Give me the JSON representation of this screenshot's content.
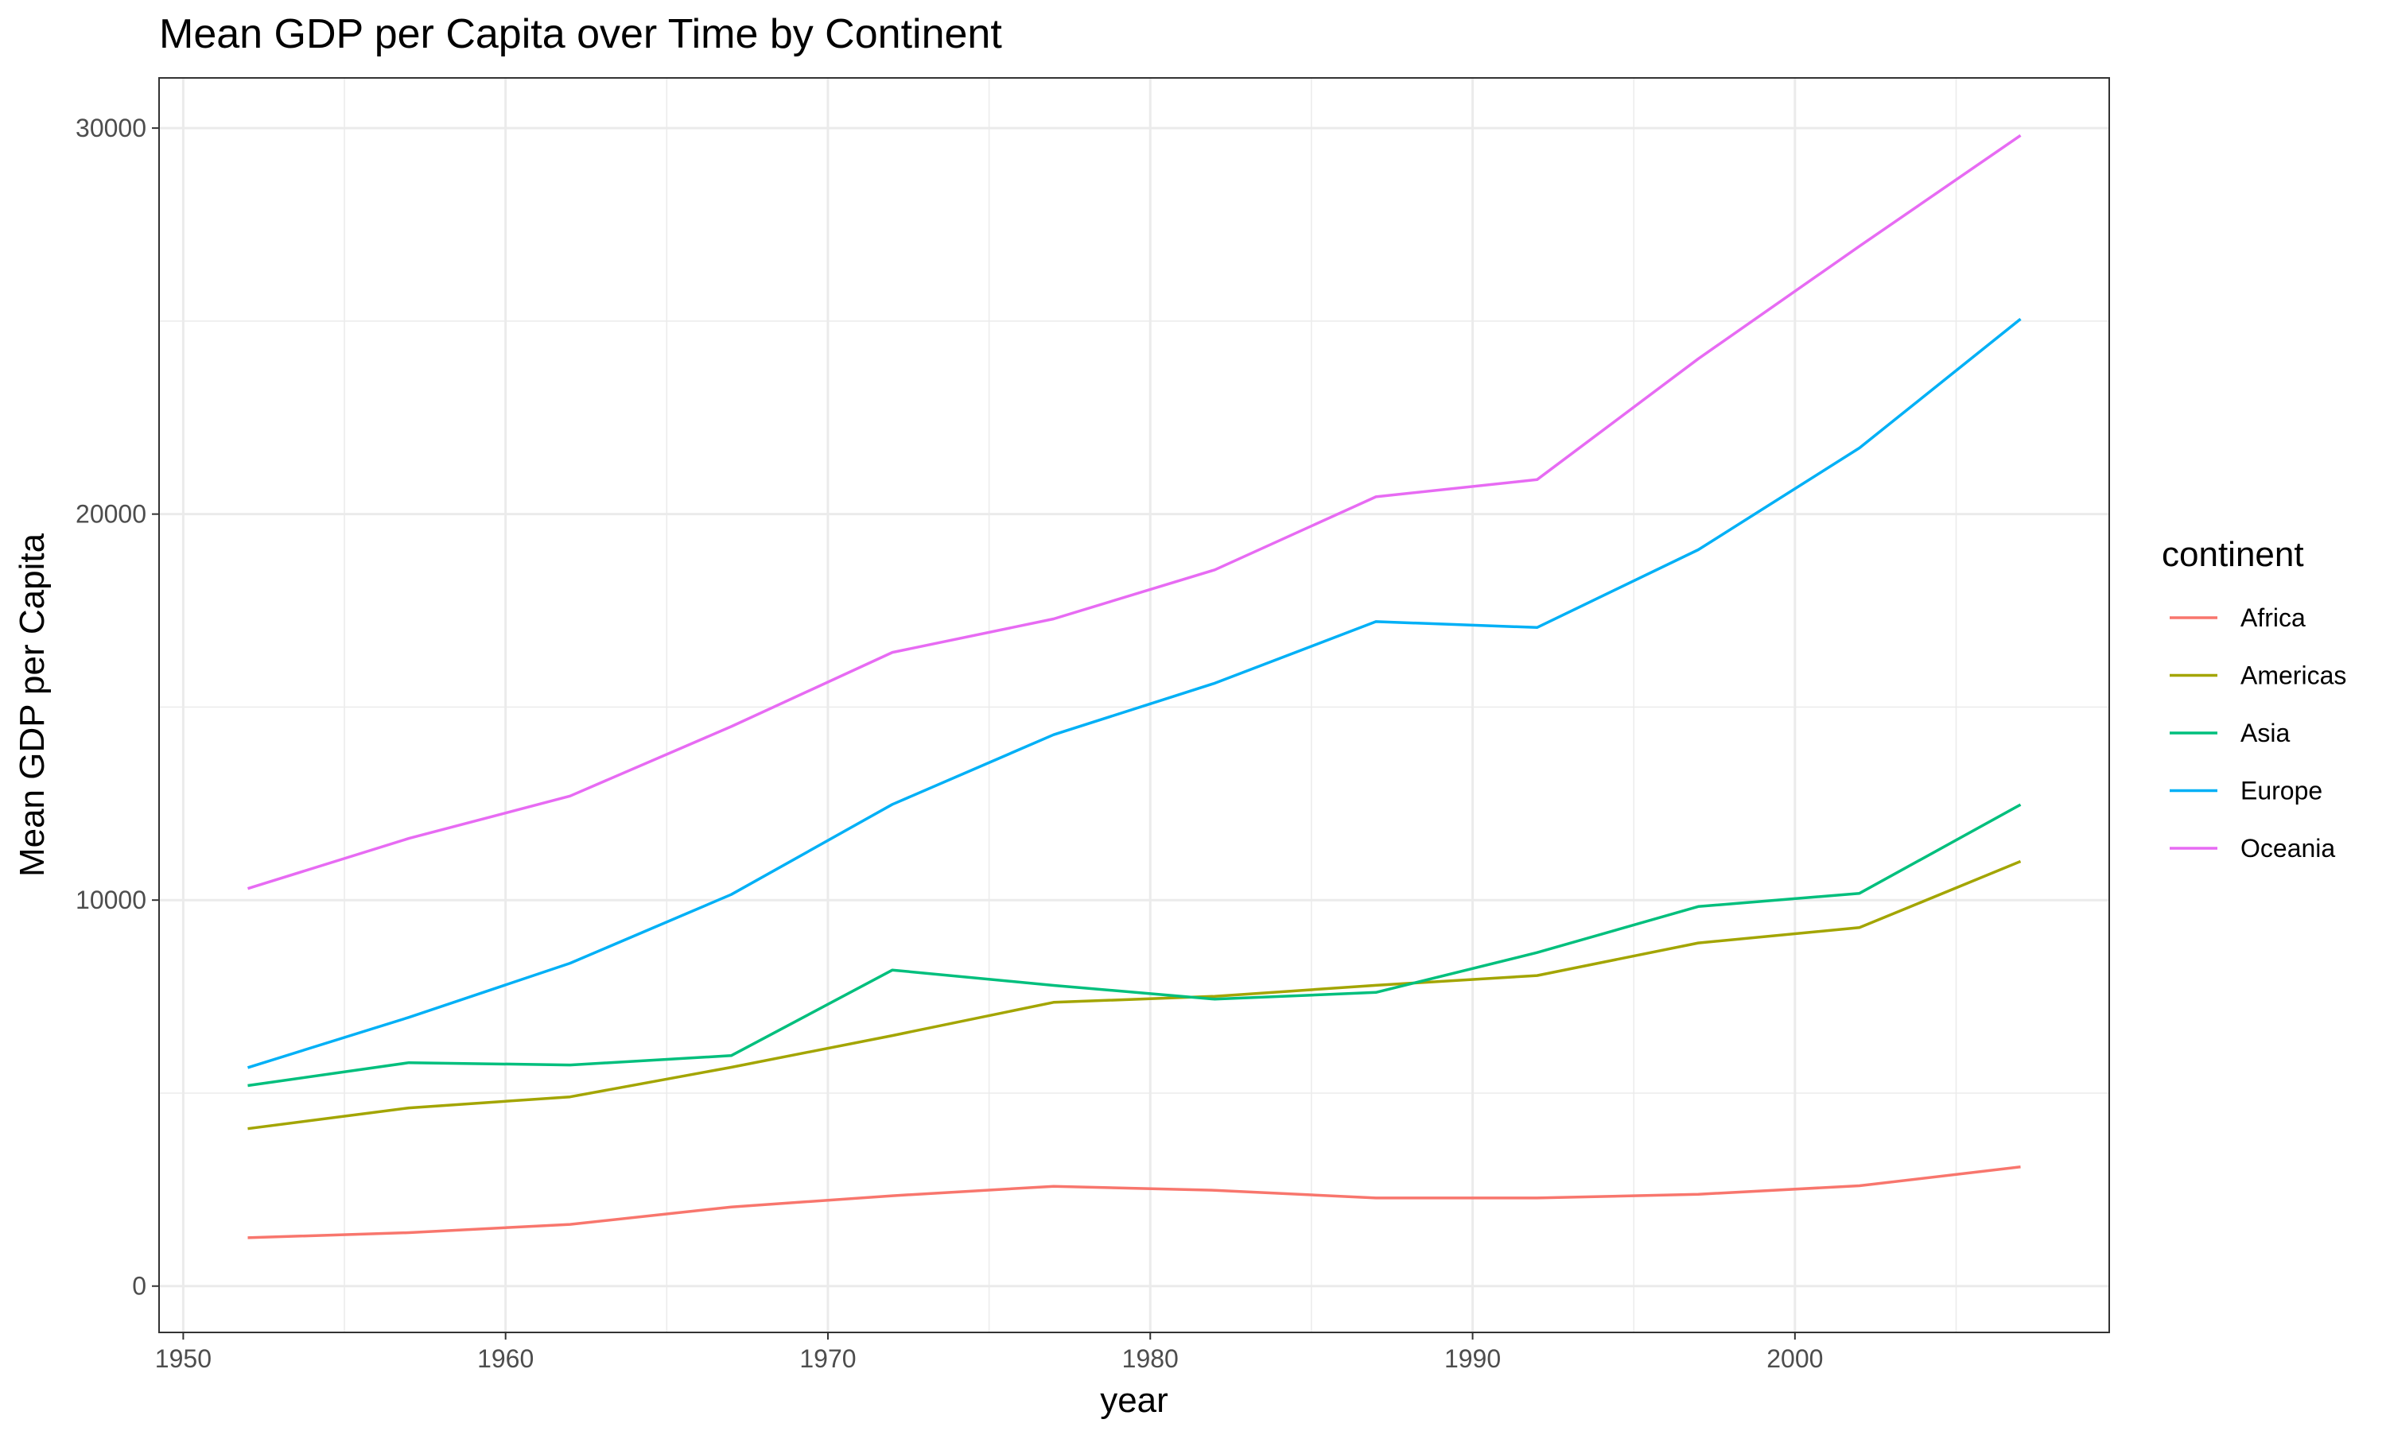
{
  "chart_data": {
    "type": "line",
    "title": "Mean GDP per Capita over Time by Continent",
    "xlabel": "year",
    "ylabel": "Mean GDP per Capita",
    "xlim": [
      1949.25,
      2009.75
    ],
    "ylim": [
      -1200,
      31300
    ],
    "x_ticks": [
      1950,
      1960,
      1970,
      1980,
      1990,
      2000
    ],
    "y_ticks": [
      0,
      10000,
      20000,
      30000
    ],
    "x_tick_labels": [
      "1950",
      "1960",
      "1970",
      "1980",
      "1990",
      "2000"
    ],
    "y_tick_labels": [
      "0",
      "10000",
      "20000",
      "30000"
    ],
    "grid": true,
    "legend": {
      "title": "continent",
      "position": "right"
    },
    "x": [
      1952,
      1957,
      1962,
      1967,
      1972,
      1977,
      1982,
      1987,
      1992,
      1997,
      2002,
      2007
    ],
    "series": [
      {
        "name": "Africa",
        "color": "#F8766D",
        "values": [
          1253,
          1385,
          1598,
          2050,
          2340,
          2586,
          2482,
          2283,
          2282,
          2379,
          2599,
          3089
        ]
      },
      {
        "name": "Americas",
        "color": "#A3A500",
        "values": [
          4079,
          4616,
          4902,
          5668,
          6491,
          7352,
          7507,
          7793,
          8045,
          8889,
          9288,
          11003
        ]
      },
      {
        "name": "Asia",
        "color": "#00BF7D",
        "values": [
          5195,
          5788,
          5729,
          5971,
          8187,
          7791,
          7434,
          7608,
          8640,
          9834,
          10174,
          12473
        ]
      },
      {
        "name": "Europe",
        "color": "#00B0F6",
        "values": [
          5661,
          6963,
          8365,
          10144,
          12480,
          14284,
          15618,
          17214,
          17062,
          19077,
          21712,
          25054
        ]
      },
      {
        "name": "Oceania",
        "color": "#E76BF3",
        "values": [
          10298,
          11599,
          12696,
          14496,
          16417,
          17284,
          18555,
          20448,
          20894,
          24024,
          26939,
          29810
        ]
      }
    ]
  }
}
